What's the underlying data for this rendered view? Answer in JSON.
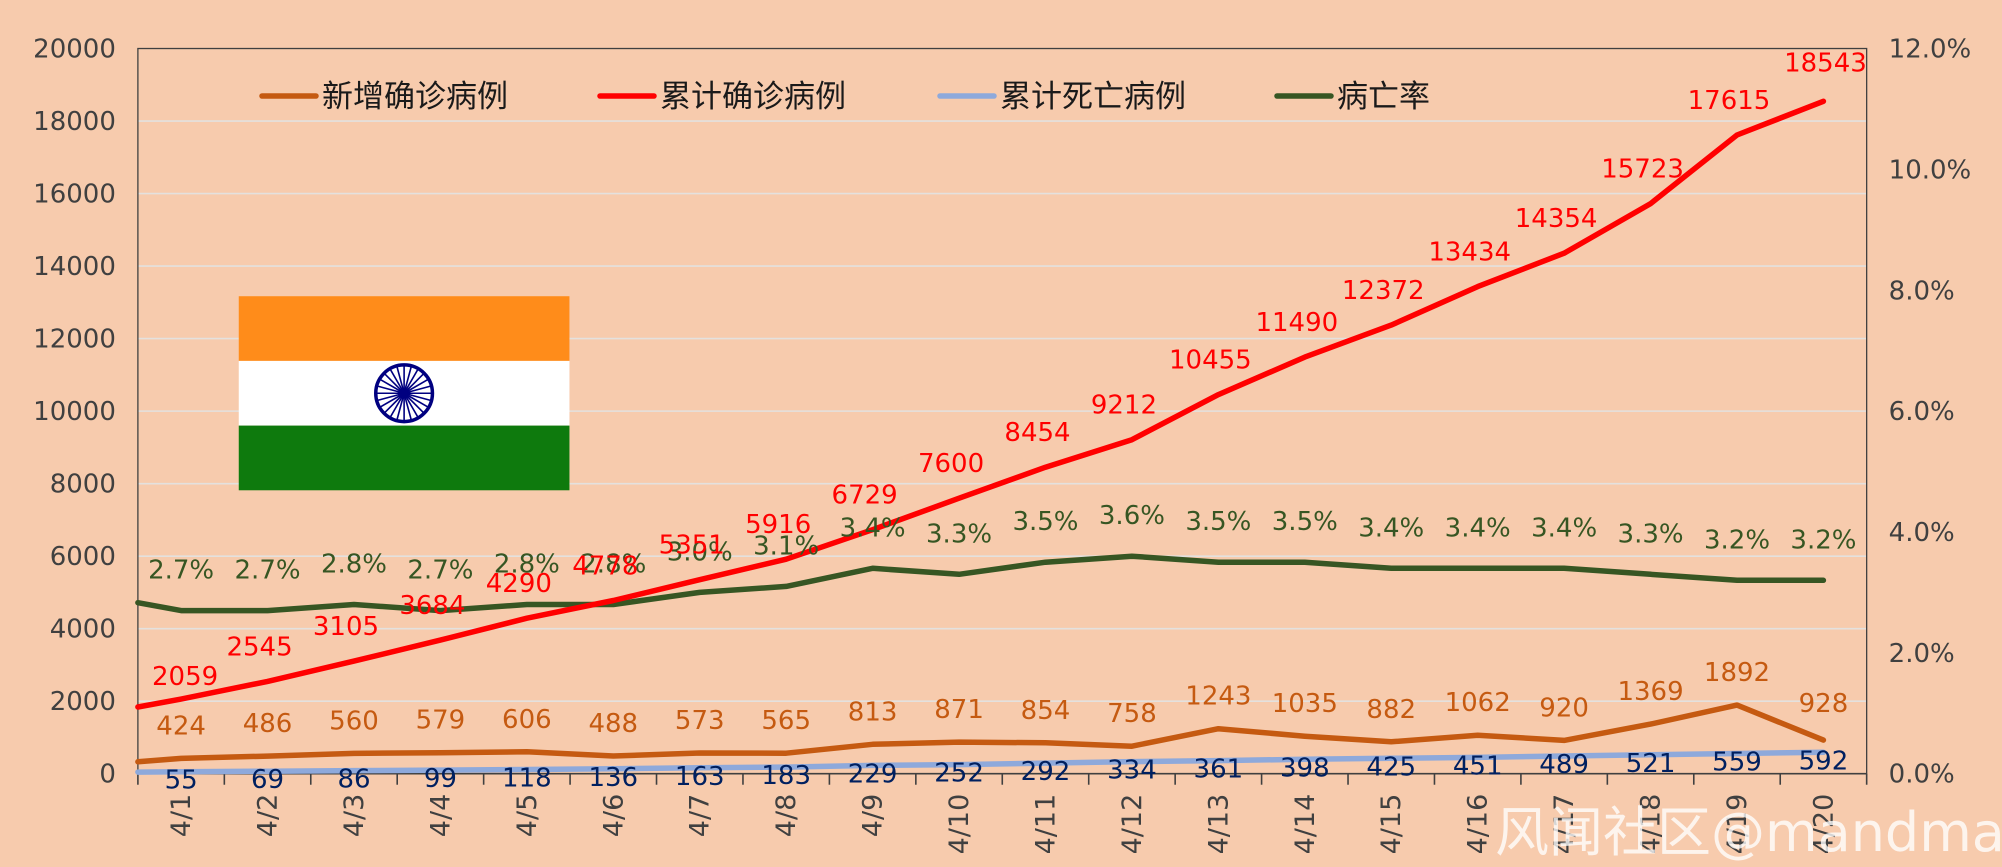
{
  "colors": {
    "background": "#F7CBAD",
    "new_cases": "#C55A11",
    "cumulative_cases": "#FF0000",
    "cumulative_deaths": "#8EA9DB",
    "death_label": "#002060",
    "fatality_rate": "#375623",
    "axis_text": "#404040",
    "flag_saffron": "#FF8C1A",
    "flag_white": "#FFFFFF",
    "flag_green": "#0E7A0D",
    "flag_chakra": "#000080"
  },
  "chart_data": {
    "type": "line",
    "categories": [
      "4/1",
      "4/2",
      "4/3",
      "4/4",
      "4/5",
      "4/6",
      "4/7",
      "4/8",
      "4/9",
      "4/10",
      "4/11",
      "4/12",
      "4/13",
      "4/14",
      "4/15",
      "4/16",
      "4/17",
      "4/18",
      "4/19",
      "4/20"
    ],
    "y_left": {
      "ylim": [
        0,
        20000
      ],
      "ticks": [
        "0",
        "2000",
        "4000",
        "6000",
        "8000",
        "10000",
        "12000",
        "14000",
        "16000",
        "18000",
        "20000"
      ]
    },
    "y_right": {
      "ylim": [
        0,
        0.12
      ],
      "ticks": [
        "0.0%",
        "2.0%",
        "4.0%",
        "6.0%",
        "8.0%",
        "10.0%",
        "12.0%"
      ]
    },
    "grid": true,
    "legend_position": "top",
    "series": [
      {
        "key": "new_cases",
        "name": "新增确诊病例",
        "axis": "left",
        "values": [
          424,
          486,
          560,
          579,
          606,
          488,
          573,
          565,
          813,
          871,
          854,
          758,
          1243,
          1035,
          882,
          1062,
          920,
          1369,
          1892,
          928
        ],
        "labels": [
          "424",
          "486",
          "560",
          "579",
          "606",
          "488",
          "573",
          "565",
          "813",
          "871",
          "854",
          "758",
          "1243",
          "1035",
          "882",
          "1062",
          "920",
          "1369",
          "1892",
          "928"
        ]
      },
      {
        "key": "cumulative_cases",
        "name": "累计确诊病例",
        "axis": "left",
        "values": [
          2059,
          2545,
          3105,
          3684,
          4290,
          4778,
          5351,
          5916,
          6729,
          7600,
          8454,
          9212,
          10455,
          11490,
          12372,
          13434,
          14354,
          15723,
          17615,
          18543
        ],
        "labels": [
          "2059",
          "2545",
          "3105",
          "3684",
          "4290",
          "4778",
          "5351",
          "5916",
          "6729",
          "7600",
          "8454",
          "9212",
          "10455",
          "11490",
          "12372",
          "13434",
          "14354",
          "15723",
          "17615",
          "18543"
        ]
      },
      {
        "key": "cumulative_deaths",
        "name": "累计死亡病例",
        "axis": "left",
        "values": [
          55,
          69,
          86,
          99,
          118,
          136,
          163,
          183,
          229,
          252,
          292,
          334,
          361,
          398,
          425,
          451,
          489,
          521,
          559,
          592
        ],
        "labels": [
          "55",
          "69",
          "86",
          "99",
          "118",
          "136",
          "163",
          "183",
          "229",
          "252",
          "292",
          "334",
          "361",
          "398",
          "425",
          "451",
          "489",
          "521",
          "559",
          "592"
        ]
      },
      {
        "key": "fatality_rate",
        "name": "病亡率",
        "axis": "right",
        "values": [
          0.027,
          0.027,
          0.028,
          0.027,
          0.028,
          0.028,
          0.03,
          0.031,
          0.034,
          0.033,
          0.035,
          0.036,
          0.035,
          0.035,
          0.034,
          0.034,
          0.034,
          0.033,
          0.032,
          0.032
        ],
        "labels": [
          "2.7%",
          "2.7%",
          "2.8%",
          "2.7%",
          "2.8%",
          "2.8%",
          "3.0%",
          "3.1%",
          "3.4%",
          "3.3%",
          "3.5%",
          "3.6%",
          "3.5%",
          "3.5%",
          "3.4%",
          "3.4%",
          "3.4%",
          "3.3%",
          "3.2%",
          "3.2%"
        ]
      }
    ]
  },
  "watermark": "风闻社区@mandman"
}
